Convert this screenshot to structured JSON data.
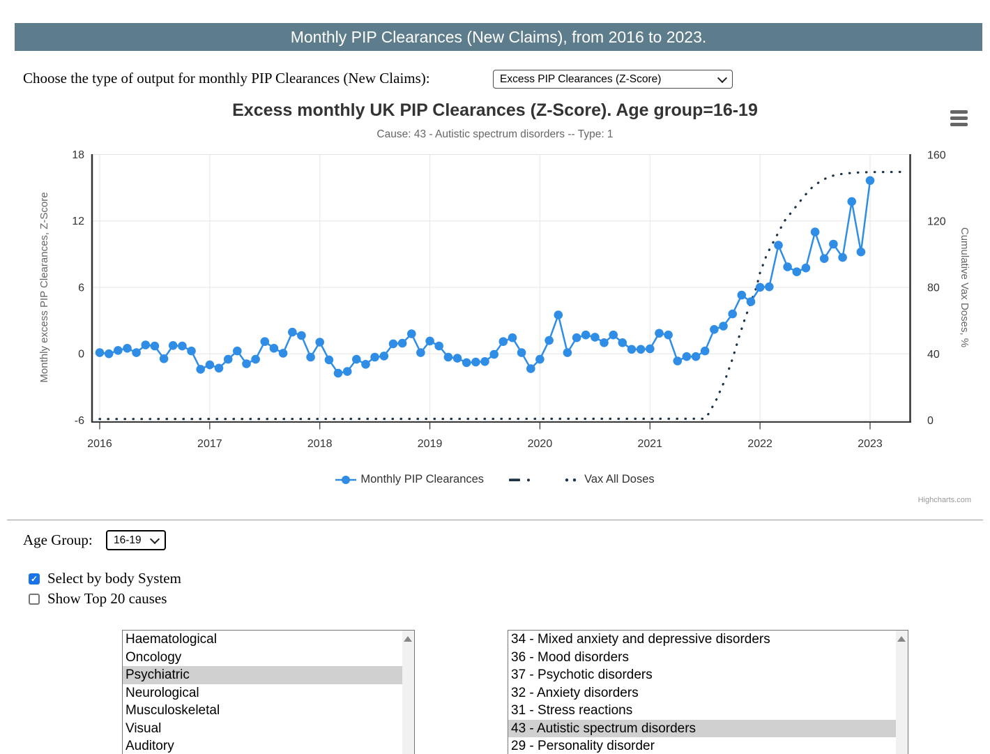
{
  "header": {
    "title": "Monthly PIP Clearances (New Claims), from 2016 to 2023.",
    "bg_color": "#5e7d8c",
    "text_color": "#ffffff"
  },
  "output_selector": {
    "label": "Choose the type of output for monthly PIP Clearances (New Claims):",
    "selected": "Excess PIP Clearances (Z-Score)"
  },
  "chart_data": {
    "type": "line",
    "title": "Excess monthly UK PIP Clearances (Z-Score). Age group=16-19",
    "subtitle": "Cause: 43 - Autistic spectrum disorders -- Type: 1",
    "x_ticks": [
      "2016",
      "2017",
      "2018",
      "2019",
      "2020",
      "2021",
      "2022",
      "2023"
    ],
    "y_left": {
      "title": "Monthly excess PIP Clearances, Z-Score",
      "ticks": [
        18,
        12,
        6,
        0,
        -6
      ],
      "min": -6,
      "max": 18
    },
    "y_right": {
      "title": "Cumulative Vax Doses, %",
      "ticks": [
        160,
        120,
        80,
        40,
        0
      ],
      "min": 0,
      "max": 160
    },
    "grid": true,
    "legend_position": "bottom",
    "series": [
      {
        "name": "Monthly PIP Clearances",
        "style": "line-markers",
        "color": "#2f8de6",
        "axis": "left",
        "start": "2016-01",
        "interval": "month",
        "values": [
          0.1,
          0.0,
          0.3,
          0.5,
          0.1,
          0.8,
          0.7,
          -0.45,
          0.75,
          0.7,
          0.25,
          -1.4,
          -1.0,
          -1.3,
          -0.5,
          0.25,
          -0.9,
          -0.5,
          1.1,
          0.5,
          0.05,
          1.95,
          1.65,
          -0.3,
          1.05,
          -0.55,
          -1.75,
          -1.6,
          -0.5,
          -0.95,
          -0.3,
          -0.2,
          0.9,
          0.95,
          1.8,
          0.1,
          1.15,
          0.7,
          -0.3,
          -0.4,
          -0.8,
          -0.75,
          -0.7,
          -0.05,
          1.1,
          1.45,
          0.1,
          -1.35,
          -0.5,
          1.2,
          3.5,
          0.1,
          1.45,
          1.7,
          1.5,
          1.0,
          1.7,
          1.0,
          0.4,
          0.4,
          0.45,
          1.85,
          1.7,
          -0.65,
          -0.25,
          -0.25,
          0.25,
          2.2,
          2.5,
          3.6,
          5.3,
          4.7,
          6.0,
          6.05,
          9.8,
          7.85,
          7.4,
          7.75,
          11.0,
          8.6,
          9.9,
          8.7,
          13.75,
          9.2,
          15.65
        ]
      },
      {
        "name": "",
        "style": "dash-dot",
        "color": "#1d3349",
        "axis": "left",
        "values": []
      },
      {
        "name": "Vax All Doses",
        "style": "dotted",
        "color": "#1d3349",
        "axis": "right",
        "points": [
          [
            0,
            0.7
          ],
          [
            66,
            0.9
          ],
          [
            66.4,
            4
          ],
          [
            66.8,
            8
          ],
          [
            67.3,
            13
          ],
          [
            67.6,
            17
          ],
          [
            68,
            22
          ],
          [
            68.3,
            26
          ],
          [
            69,
            37
          ],
          [
            69.7,
            50
          ],
          [
            70.4,
            62
          ],
          [
            71,
            71
          ],
          [
            71.6,
            80
          ],
          [
            72,
            89
          ],
          [
            72.75,
            100
          ],
          [
            73.7,
            110
          ],
          [
            74.65,
            120
          ],
          [
            75.8,
            128
          ],
          [
            76.8,
            135
          ],
          [
            77.7,
            140.5
          ],
          [
            78.8,
            145
          ],
          [
            80,
            147.5
          ],
          [
            81.1,
            148.7
          ],
          [
            82.6,
            149.3
          ],
          [
            84,
            149.6
          ],
          [
            87.3,
            149.7
          ]
        ]
      }
    ],
    "legend": [
      "Monthly PIP Clearances",
      "",
      "Vax All Doses"
    ]
  },
  "credit": "Highcharts.com",
  "controls": {
    "age_group": {
      "label": "Age Group:",
      "selected": "16-19"
    },
    "checkboxes": [
      {
        "label": "Select by body System",
        "checked": true
      },
      {
        "label": "Show Top 20 causes",
        "checked": false
      }
    ]
  },
  "body_system_list": {
    "items": [
      "Haematological",
      "Oncology",
      "Psychiatric",
      "Neurological",
      "Musculoskeletal",
      "Visual",
      "Auditory"
    ],
    "selected": "Psychiatric",
    "selected_bg": "#d0d0d0"
  },
  "cause_list": {
    "items": [
      "34 - Mixed anxiety and depressive disorders",
      "36 - Mood disorders",
      "37 - Psychotic disorders",
      "32 - Anxiety disorders",
      "31 - Stress reactions",
      "43 - Autistic spectrum disorders",
      "29 - Personality disorder"
    ],
    "selected": "43 - Autistic spectrum disorders",
    "selected_bg": "#d0d0d0"
  }
}
